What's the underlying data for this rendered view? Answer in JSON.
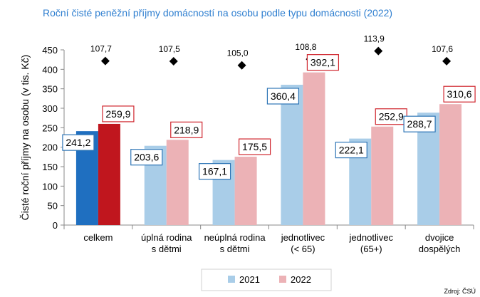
{
  "chart_data": {
    "type": "bar",
    "title": "Roční čisté peněžní příjmy domácností na osobu podle typu domácnosti (2022)",
    "ylabel": "Čisté roční příjmy na osobu (v tis. Kč)",
    "ylim": [
      0,
      450
    ],
    "yticks": [
      0,
      50,
      100,
      150,
      200,
      250,
      300,
      350,
      400,
      450
    ],
    "categories": [
      [
        "celkem"
      ],
      [
        "úplná rodina",
        "s dětmi"
      ],
      [
        "neúplná rodina",
        "s dětmi"
      ],
      [
        "jednotlivec",
        "(< 65)"
      ],
      [
        "jednotlivec",
        "(65+)"
      ],
      [
        "dvojice",
        "dospělých"
      ]
    ],
    "series": [
      {
        "name": "2021",
        "values": [
          241.2,
          203.6,
          167.1,
          360.4,
          222.1,
          288.7
        ],
        "labels": [
          "241,2",
          "203,6",
          "167,1",
          "360,4",
          "222,1",
          "288,7"
        ]
      },
      {
        "name": "2022",
        "values": [
          259.9,
          218.9,
          175.5,
          392.1,
          252.9,
          310.6
        ],
        "labels": [
          "259,9",
          "218,9",
          "175,5",
          "392,1",
          "252,9",
          "310,6"
        ]
      }
    ],
    "index_markers": {
      "values": [
        107.7,
        107.5,
        105.0,
        108.8,
        113.9,
        107.6
      ],
      "labels": [
        "107,7",
        "107,5",
        "105,0",
        "108,8",
        "113,9",
        "107,6"
      ]
    },
    "legend_position": "bottom",
    "grid": false,
    "source": "Zdroj: ČSÚ",
    "colors": {
      "s2021": "#a9cde8",
      "s2022": "#ecb2b6",
      "s2021_highlight": "#1f6fc0",
      "s2022_highlight": "#c0161e",
      "label_border_2021": "#2e75b6",
      "label_border_2022": "#d0262e",
      "marker": "#000000",
      "title": "#2f7fd0"
    }
  }
}
